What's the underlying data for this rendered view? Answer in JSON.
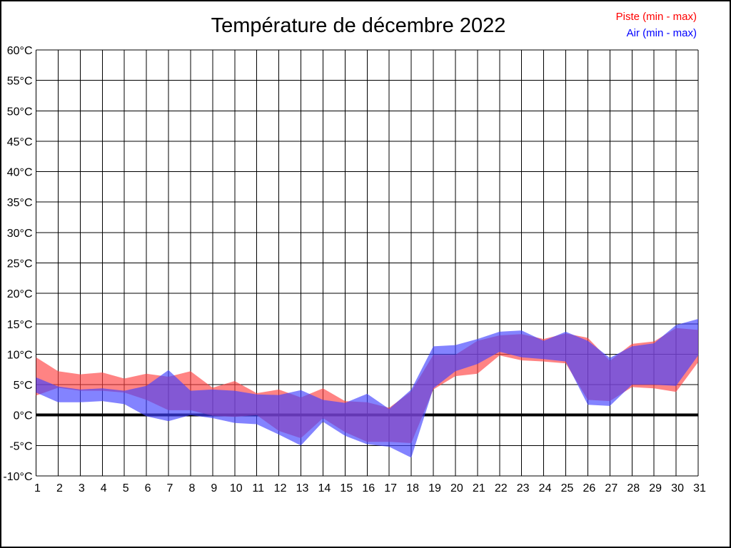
{
  "title": "Température de décembre 2022",
  "legend": [
    {
      "label": "Piste (min - max)",
      "color": "#ff0000"
    },
    {
      "label": "Air (min - max)",
      "color": "#0000ff"
    }
  ],
  "chart_data": {
    "type": "area",
    "title": "Température de décembre 2022",
    "x_ticks": [
      1,
      2,
      3,
      4,
      5,
      6,
      7,
      8,
      9,
      10,
      11,
      12,
      13,
      14,
      15,
      16,
      17,
      18,
      19,
      20,
      21,
      22,
      23,
      24,
      25,
      26,
      27,
      28,
      29,
      30,
      31
    ],
    "y_min": -10,
    "y_max": 60,
    "y_step": 5,
    "y_unit": "°C",
    "grid": true,
    "zero_line": true,
    "legend_position": "top-right",
    "series": [
      {
        "name": "Piste (min - max)",
        "color": "#ff4040",
        "fill_opacity": 0.65,
        "min": [
          3.2,
          4.5,
          4.0,
          4.0,
          3.7,
          2.5,
          0.8,
          0.8,
          -0.1,
          -0.3,
          0.0,
          -2.6,
          -3.8,
          -0.5,
          -2.8,
          -4.4,
          -4.4,
          -4.6,
          4.2,
          6.4,
          6.8,
          9.8,
          9.0,
          8.8,
          8.5,
          2.5,
          2.3,
          4.6,
          4.4,
          3.8,
          8.7
        ],
        "max": [
          9.5,
          7.2,
          6.7,
          7.0,
          6.0,
          6.8,
          6.3,
          7.2,
          4.5,
          5.6,
          3.6,
          4.2,
          2.9,
          4.4,
          2.3,
          2.1,
          1.2,
          3.9,
          9.9,
          9.9,
          12.2,
          13.1,
          13.3,
          12.5,
          13.4,
          12.7,
          8.9,
          11.7,
          12.1,
          14.3,
          14.0
        ]
      },
      {
        "name": "Air (min - max)",
        "color": "#4040ff",
        "fill_opacity": 0.65,
        "min": [
          3.7,
          2.1,
          2.1,
          2.3,
          1.8,
          -0.2,
          -1.0,
          0.0,
          -0.5,
          -1.3,
          -1.5,
          -3.2,
          -5.0,
          -1.1,
          -3.4,
          -4.8,
          -5.2,
          -7.0,
          4.4,
          7.2,
          8.4,
          10.4,
          9.5,
          9.2,
          8.8,
          1.7,
          1.5,
          5.0,
          5.0,
          4.8,
          9.8
        ],
        "max": [
          6.2,
          4.7,
          4.2,
          4.4,
          4.0,
          4.8,
          7.4,
          4.0,
          4.2,
          4.0,
          3.4,
          3.3,
          4.1,
          2.5,
          2.0,
          3.5,
          1.0,
          4.2,
          11.3,
          11.5,
          12.5,
          13.7,
          13.9,
          12.2,
          13.7,
          12.2,
          9.4,
          11.3,
          11.8,
          14.8,
          15.8
        ]
      }
    ]
  }
}
